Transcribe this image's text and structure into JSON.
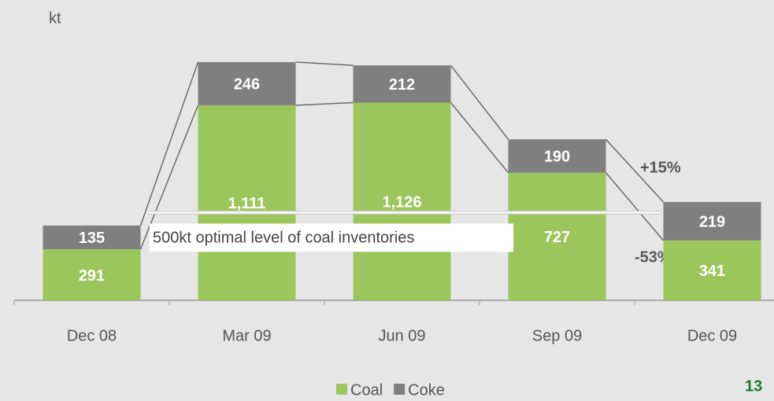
{
  "chart_data": {
    "type": "stacked_bar",
    "y_label": "kt",
    "categories": [
      "Dec 08",
      "Mar 09",
      "Jun 09",
      "Sep 09",
      "Dec 09"
    ],
    "series": [
      {
        "name": "Coal",
        "color": "#9bc65b",
        "values": [
          291,
          1111,
          1126,
          727,
          341
        ],
        "value_labels": [
          "291",
          "1,111",
          "1,126",
          "727",
          "341"
        ]
      },
      {
        "name": "Coke",
        "color": "#7f7f7f",
        "values": [
          135,
          246,
          212,
          190,
          219
        ]
      }
    ],
    "ylim": [
      0,
      1500
    ],
    "reference_line": {
      "value": 500,
      "label": "500kt optimal level of coal inventories"
    },
    "annotations": [
      "+15%",
      "-53%"
    ],
    "page_number": "13"
  }
}
